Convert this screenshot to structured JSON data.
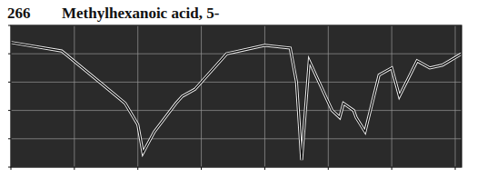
{
  "chart_data": {
    "type": "line",
    "title": "Methylhexanoic acid, 5-",
    "annotation": "266",
    "x": [
      4000,
      3600,
      3300,
      3100,
      3000,
      2960,
      2930,
      2870,
      2700,
      2650,
      2550,
      2300,
      2000,
      1800,
      1750,
      1710,
      1650,
      1470,
      1410,
      1380,
      1300,
      1280,
      1210,
      1100,
      1000,
      940,
      800,
      700,
      600,
      450
    ],
    "values": [
      88,
      82,
      60,
      45,
      30,
      10,
      15,
      25,
      45,
      50,
      55,
      80,
      86,
      84,
      60,
      5,
      75,
      40,
      35,
      45,
      40,
      35,
      25,
      65,
      70,
      50,
      75,
      70,
      72,
      80
    ],
    "color": "#000000",
    "xlim": [
      4000,
      450
    ],
    "xticks": [
      4000,
      3500,
      3000,
      2500,
      2000,
      1500,
      1000,
      500
    ],
    "ylim": [
      0,
      100
    ],
    "yticks": [
      0,
      20,
      40,
      60,
      80,
      100
    ],
    "grid": true,
    "tick_labels": false
  }
}
